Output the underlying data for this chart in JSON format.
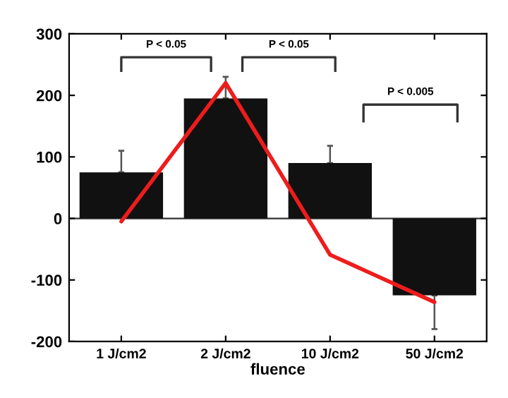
{
  "chart_data": {
    "type": "bar",
    "xlabel": "fluence",
    "categories": [
      "1 J/cm2",
      "2 J/cm2",
      "10 J/cm2",
      "50 J/cm2"
    ],
    "series": [
      {
        "color": "#111111",
        "values": [
          75,
          195,
          90,
          -125
        ],
        "errors": [
          [
            75,
            110
          ],
          [
            195,
            230
          ],
          [
            90,
            118
          ],
          [
            -180,
            -125
          ]
        ]
      },
      {
        "type": "line",
        "color": "#ee1c1c",
        "values": [
          -5,
          220,
          -59,
          -136
        ]
      }
    ],
    "annotations": [
      "P < 0.05",
      "P < 0.05",
      "P < 0.005"
    ],
    "ylim": [
      -200,
      300
    ],
    "yticks": [
      -200,
      -100,
      0,
      100,
      200,
      300
    ],
    "ref_lines": [
      {
        "axis": "y",
        "value": 0,
        "color": "#333333"
      }
    ],
    "grid": false,
    "legend": false
  }
}
